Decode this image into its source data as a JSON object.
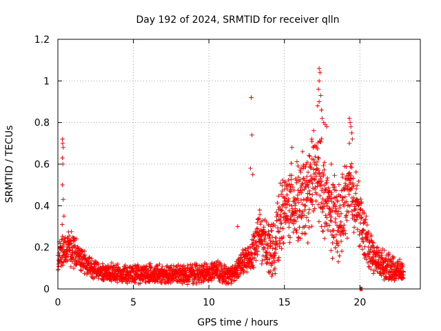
{
  "chart_data": {
    "type": "scatter",
    "title": "Day 192 of 2024, SRMTID for receiver qlln",
    "xlabel": "GPS time / hours",
    "ylabel": "SRMTID / TECUs",
    "xlim": [
      0,
      24
    ],
    "ylim": [
      0,
      1.2
    ],
    "xticks": [
      0,
      5,
      10,
      15,
      20
    ],
    "yticks": [
      0,
      0.2,
      0.4,
      0.6,
      0.8,
      1,
      1.2
    ],
    "xtick_labels": [
      "0",
      "5",
      "10",
      "15",
      "20"
    ],
    "ytick_labels": [
      "0",
      "0.2",
      "0.4",
      "0.6",
      "0.8",
      "1",
      "1.2"
    ],
    "grid": true,
    "marker": "+",
    "color": "#ff0000",
    "series": [
      {
        "name": "SRMTID",
        "profile_points": [
          [
            0.0,
            0.14
          ],
          [
            0.3,
            0.18
          ],
          [
            0.7,
            0.2
          ],
          [
            1.0,
            0.18
          ],
          [
            1.5,
            0.15
          ],
          [
            2.0,
            0.11
          ],
          [
            3.0,
            0.08
          ],
          [
            5.0,
            0.07
          ],
          [
            7.0,
            0.07
          ],
          [
            9.0,
            0.07
          ],
          [
            10.0,
            0.08
          ],
          [
            10.5,
            0.09
          ],
          [
            11.0,
            0.07
          ],
          [
            11.5,
            0.06
          ],
          [
            12.0,
            0.11
          ],
          [
            12.5,
            0.14
          ],
          [
            12.9,
            0.18
          ],
          [
            13.3,
            0.26
          ],
          [
            13.8,
            0.22
          ],
          [
            14.3,
            0.18
          ],
          [
            14.8,
            0.36
          ],
          [
            15.5,
            0.42
          ],
          [
            16.0,
            0.4
          ],
          [
            16.5,
            0.44
          ],
          [
            17.0,
            0.55
          ],
          [
            17.4,
            0.52
          ],
          [
            17.8,
            0.4
          ],
          [
            18.3,
            0.34
          ],
          [
            18.7,
            0.32
          ],
          [
            19.0,
            0.42
          ],
          [
            19.4,
            0.48
          ],
          [
            19.8,
            0.4
          ],
          [
            20.2,
            0.28
          ],
          [
            20.6,
            0.2
          ],
          [
            21.0,
            0.14
          ],
          [
            21.5,
            0.12
          ],
          [
            22.0,
            0.1
          ],
          [
            22.5,
            0.09
          ],
          [
            22.9,
            0.08
          ]
        ],
        "spread_points": [
          [
            0.0,
            0.05
          ],
          [
            1.0,
            0.06
          ],
          [
            2.0,
            0.035
          ],
          [
            11.8,
            0.035
          ],
          [
            12.5,
            0.05
          ],
          [
            13.0,
            0.09
          ],
          [
            14.0,
            0.09
          ],
          [
            15.0,
            0.13
          ],
          [
            16.0,
            0.15
          ],
          [
            17.0,
            0.17
          ],
          [
            18.0,
            0.15
          ],
          [
            19.0,
            0.14
          ],
          [
            20.0,
            0.11
          ],
          [
            21.0,
            0.06
          ],
          [
            22.9,
            0.035
          ]
        ],
        "outliers": [
          [
            0.3,
            0.72
          ],
          [
            0.32,
            0.7
          ],
          [
            0.35,
            0.68
          ],
          [
            0.3,
            0.63
          ],
          [
            0.33,
            0.6
          ],
          [
            0.3,
            0.5
          ],
          [
            0.35,
            0.43
          ],
          [
            0.4,
            0.35
          ],
          [
            0.28,
            0.31
          ],
          [
            12.8,
            0.92
          ],
          [
            12.85,
            0.74
          ],
          [
            12.75,
            0.58
          ],
          [
            12.9,
            0.55
          ],
          [
            17.3,
            1.06
          ],
          [
            17.35,
            1.04
          ],
          [
            17.3,
            1.0
          ],
          [
            17.25,
            0.96
          ],
          [
            17.4,
            0.93
          ],
          [
            17.3,
            0.9
          ],
          [
            17.2,
            0.88
          ],
          [
            17.45,
            0.86
          ],
          [
            17.5,
            0.82
          ],
          [
            17.6,
            0.8
          ],
          [
            17.7,
            0.79
          ],
          [
            17.8,
            0.78
          ],
          [
            19.3,
            0.82
          ],
          [
            19.35,
            0.8
          ],
          [
            19.4,
            0.78
          ],
          [
            19.45,
            0.75
          ],
          [
            19.5,
            0.72
          ],
          [
            19.3,
            0.7
          ],
          [
            15.5,
            0.68
          ],
          [
            16.2,
            0.66
          ],
          [
            16.8,
            0.72
          ],
          [
            18.1,
            0.6
          ],
          [
            20.0,
            0.0
          ],
          [
            20.05,
            0.0
          ],
          [
            20.1,
            0.0
          ],
          [
            20.15,
            0.0
          ],
          [
            11.9,
            0.3
          ],
          [
            13.5,
            0.12
          ],
          [
            14.1,
            0.3
          ]
        ],
        "sample_interval_hours": 0.01,
        "x_end": 22.9
      }
    ]
  }
}
